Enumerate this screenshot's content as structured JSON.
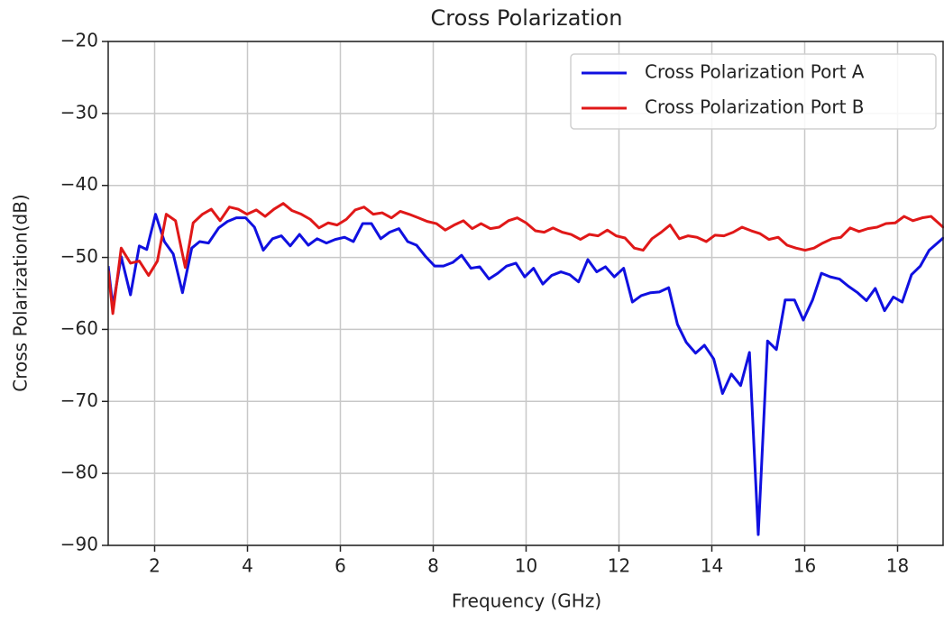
{
  "chart_data": {
    "type": "line",
    "title": "Cross Polarization",
    "xlabel": "Frequency (GHz)",
    "ylabel": "Cross Polarization(dB)",
    "xlim": [
      1,
      19
    ],
    "xticks": [
      2,
      4,
      6,
      8,
      10,
      12,
      14,
      16,
      18
    ],
    "ylim": [
      -90,
      -20
    ],
    "yticks": [
      {
        "value": -20,
        "label": "−20"
      },
      {
        "value": -30,
        "label": "−30"
      },
      {
        "value": -40,
        "label": "−40"
      },
      {
        "value": -50,
        "label": "−50"
      },
      {
        "value": -60,
        "label": "−60"
      },
      {
        "value": -70,
        "label": "−70"
      },
      {
        "value": -80,
        "label": "−80"
      },
      {
        "value": -90,
        "label": "−90"
      }
    ],
    "grid": true,
    "legend": "upper right",
    "series": [
      {
        "name": "Cross Polarization Port A",
        "color": "#1010e0",
        "x": [
          1,
          1.1,
          1.28,
          1.48,
          1.67,
          1.83,
          2.02,
          2.21,
          2.4,
          2.6,
          2.8,
          2.97,
          3.16,
          3.38,
          3.57,
          3.76,
          3.96,
          4.15,
          4.34,
          4.54,
          4.73,
          4.92,
          5.12,
          5.31,
          5.5,
          5.7,
          5.89,
          6.09,
          6.28,
          6.48,
          6.67,
          6.87,
          7.06,
          7.26,
          7.45,
          7.64,
          7.84,
          8.03,
          8.22,
          8.42,
          8.61,
          8.81,
          9.0,
          9.2,
          9.39,
          9.58,
          9.78,
          9.97,
          10.16,
          10.36,
          10.55,
          10.75,
          10.94,
          11.13,
          11.33,
          11.52,
          11.71,
          11.9,
          12.1,
          12.29,
          12.48,
          12.68,
          12.87,
          13.07,
          13.26,
          13.45,
          13.65,
          13.84,
          14.04,
          14.23,
          14.42,
          14.62,
          14.81,
          15.0,
          15.2,
          15.39,
          15.58,
          15.78,
          15.97,
          16.17,
          16.36,
          16.55,
          16.75,
          16.94,
          17.14,
          17.33,
          17.52,
          17.72,
          17.91,
          18.1,
          18.3,
          18.49,
          18.68,
          19
        ],
        "values": [
          -51.2,
          -56.8,
          -49.9,
          -55.2,
          -48.4,
          -48.9,
          -44.0,
          -47.8,
          -49.5,
          -54.9,
          -48.7,
          -47.8,
          -48.0,
          -45.9,
          -45.0,
          -44.5,
          -44.5,
          -45.8,
          -49.0,
          -47.4,
          -47.0,
          -48.4,
          -46.8,
          -48.3,
          -47.4,
          -48.0,
          -47.5,
          -47.2,
          -47.8,
          -45.3,
          -45.3,
          -47.4,
          -46.5,
          -46.0,
          -47.8,
          -48.3,
          -49.9,
          -51.2,
          -51.2,
          -50.7,
          -49.7,
          -51.5,
          -51.3,
          -53.0,
          -52.2,
          -51.2,
          -50.8,
          -52.7,
          -51.5,
          -53.7,
          -52.5,
          -52.0,
          -52.4,
          -53.4,
          -50.3,
          -52.0,
          -51.3,
          -52.7,
          -51.5,
          -56.2,
          -55.3,
          -54.9,
          -54.8,
          -54.2,
          -59.3,
          -61.8,
          -63.3,
          -62.2,
          -64.1,
          -68.9,
          -66.2,
          -67.8,
          -63.2,
          -88.5,
          -61.6,
          -62.8,
          -55.9,
          -55.9,
          -58.7,
          -55.9,
          -52.2,
          -52.7,
          -53.0,
          -54.0,
          -54.9,
          -56.0,
          -54.3,
          -57.4,
          -55.5,
          -56.2,
          -52.4,
          -51.2,
          -49.0,
          -47.2
        ]
      },
      {
        "name": "Cross Polarization Port B",
        "color": "#e01818",
        "x": [
          1,
          1.1,
          1.28,
          1.48,
          1.67,
          1.87,
          2.06,
          2.25,
          2.45,
          2.66,
          2.83,
          3.03,
          3.22,
          3.41,
          3.61,
          3.8,
          3.99,
          4.19,
          4.38,
          4.57,
          4.77,
          4.96,
          5.16,
          5.35,
          5.54,
          5.74,
          5.93,
          6.13,
          6.32,
          6.51,
          6.71,
          6.9,
          7.1,
          7.29,
          7.48,
          7.68,
          7.87,
          8.07,
          8.26,
          8.45,
          8.65,
          8.84,
          9.03,
          9.23,
          9.42,
          9.62,
          9.81,
          10.0,
          10.2,
          10.39,
          10.58,
          10.78,
          10.97,
          11.17,
          11.36,
          11.55,
          11.75,
          11.94,
          12.13,
          12.33,
          12.52,
          12.71,
          12.91,
          13.1,
          13.3,
          13.49,
          13.68,
          13.88,
          14.07,
          14.26,
          14.46,
          14.65,
          14.85,
          15.04,
          15.23,
          15.43,
          15.62,
          15.81,
          16.01,
          16.2,
          16.39,
          16.59,
          16.78,
          16.98,
          17.17,
          17.36,
          17.56,
          17.75,
          17.95,
          18.14,
          18.33,
          18.53,
          18.72,
          19
        ],
        "values": [
          -51.8,
          -57.8,
          -48.7,
          -50.8,
          -50.5,
          -52.5,
          -50.5,
          -44.0,
          -44.9,
          -51.4,
          -45.2,
          -44.0,
          -43.3,
          -44.9,
          -43.0,
          -43.3,
          -44.0,
          -43.4,
          -44.3,
          -43.3,
          -42.5,
          -43.5,
          -44.0,
          -44.7,
          -45.9,
          -45.2,
          -45.5,
          -44.7,
          -43.4,
          -43.0,
          -44.0,
          -43.8,
          -44.5,
          -43.6,
          -44.0,
          -44.5,
          -45.0,
          -45.3,
          -46.2,
          -45.5,
          -44.9,
          -46.0,
          -45.3,
          -46.0,
          -45.8,
          -44.9,
          -44.5,
          -45.2,
          -46.3,
          -46.5,
          -45.9,
          -46.5,
          -46.8,
          -47.5,
          -46.8,
          -47.0,
          -46.2,
          -47.0,
          -47.3,
          -48.7,
          -49.0,
          -47.4,
          -46.5,
          -45.5,
          -47.4,
          -47.0,
          -47.2,
          -47.8,
          -46.9,
          -47.0,
          -46.5,
          -45.8,
          -46.3,
          -46.7,
          -47.5,
          -47.2,
          -48.3,
          -48.7,
          -49.0,
          -48.7,
          -48.0,
          -47.4,
          -47.2,
          -45.9,
          -46.4,
          -46.0,
          -45.8,
          -45.3,
          -45.2,
          -44.3,
          -44.9,
          -44.5,
          -44.3,
          -45.9
        ]
      }
    ]
  }
}
